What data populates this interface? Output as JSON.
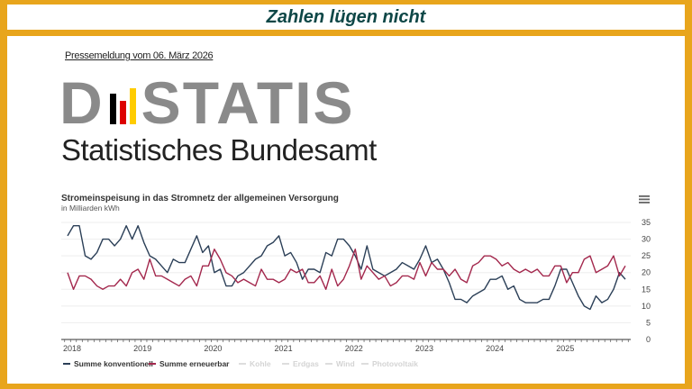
{
  "header": {
    "title": "Zahlen lügen nicht"
  },
  "press": {
    "label": "Pressemeldung vom 06. März 2026"
  },
  "logo": {
    "text_left": "D",
    "text_right": "STATIS",
    "subtitle": "Statistisches Bundesamt",
    "flag_colors": [
      "#000000",
      "#dd0000",
      "#ffcc00"
    ]
  },
  "chart_data": {
    "type": "line",
    "title": "Stromeinspeisung in das Stromnetz der allgemeinen Versorgung",
    "subtitle": "in Milliarden kWh",
    "x_ticks": [
      "2018",
      "2019",
      "2020",
      "2021",
      "2022",
      "2023",
      "2024",
      "2025"
    ],
    "x_start": "2018-01",
    "x_end": "2025-12",
    "x_frequency": "monthly",
    "y_ticks": [
      0,
      5,
      10,
      15,
      20,
      25,
      30,
      35
    ],
    "ylim": [
      0,
      35
    ],
    "y_axis_side": "right",
    "grid": true,
    "legend_position": "bottom",
    "series": [
      {
        "name": "Summe konventionell",
        "color": "#2b3f57",
        "visible": true,
        "values": [
          31,
          34,
          34,
          25,
          24,
          26,
          30,
          30,
          28,
          30,
          34,
          30,
          34,
          29,
          25,
          24,
          22,
          20,
          24,
          23,
          23,
          27,
          31,
          26,
          28,
          20,
          21,
          16,
          16,
          19,
          20,
          22,
          24,
          25,
          28,
          29,
          31,
          25,
          26,
          23,
          18,
          21,
          21,
          20,
          26,
          25,
          30,
          30,
          28,
          25,
          21,
          28,
          21,
          20,
          19,
          20,
          21,
          23,
          22,
          21,
          24,
          28,
          23,
          24,
          21,
          17,
          12,
          12,
          11,
          13,
          14,
          15,
          18,
          18,
          19,
          15,
          16,
          12,
          11,
          11,
          11,
          12,
          12,
          16,
          21,
          21,
          17,
          13,
          10,
          9,
          13,
          11,
          12,
          15,
          20,
          18
        ]
      },
      {
        "name": "Summe erneuerbar",
        "color": "#a3284d",
        "visible": true,
        "values": [
          20,
          15,
          19,
          19,
          18,
          16,
          15,
          16,
          16,
          18,
          16,
          20,
          21,
          18,
          24,
          19,
          19,
          18,
          17,
          16,
          18,
          19,
          16,
          22,
          22,
          27,
          24,
          20,
          19,
          17,
          18,
          17,
          16,
          21,
          18,
          18,
          17,
          18,
          21,
          20,
          21,
          17,
          17,
          19,
          15,
          21,
          16,
          18,
          22,
          27,
          18,
          22,
          20,
          18,
          19,
          16,
          17,
          19,
          19,
          18,
          23,
          19,
          23,
          21,
          21,
          19,
          21,
          18,
          17,
          22,
          23,
          25,
          25,
          24,
          22,
          23,
          21,
          20,
          21,
          20,
          21,
          19,
          19,
          22,
          22,
          17,
          20,
          20,
          24,
          25,
          20,
          21,
          22,
          25,
          19,
          22
        ]
      },
      {
        "name": "Kohle",
        "color": "#cccccc",
        "visible": false
      },
      {
        "name": "Erdgas",
        "color": "#cccccc",
        "visible": false
      },
      {
        "name": "Wind",
        "color": "#cccccc",
        "visible": false
      },
      {
        "name": "Photovoltaik",
        "color": "#cccccc",
        "visible": false
      }
    ]
  },
  "icons": {
    "menu": "hamburger-menu-icon"
  }
}
